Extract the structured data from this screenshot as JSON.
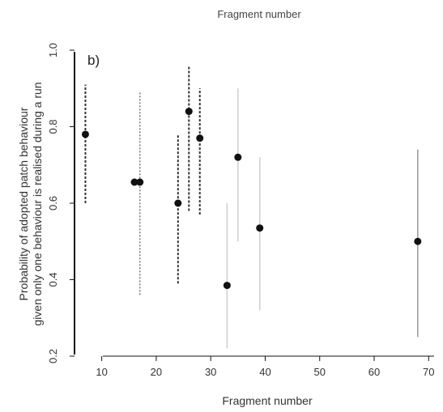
{
  "header_text": "Fragment number",
  "chart_data": {
    "type": "scatter",
    "panel_label": "b)",
    "xlabel": "Fragment number",
    "ylabel_lines": [
      "Probability of adopted patch behaviour",
      "given only one behaviour is realised during a run"
    ],
    "xlim": [
      5,
      71
    ],
    "ylim": [
      0.2,
      1.0
    ],
    "xticks": [
      10,
      20,
      30,
      40,
      50,
      60,
      70
    ],
    "yticks": [
      0.2,
      0.4,
      0.6,
      0.8,
      1.0
    ],
    "ytick_labels": [
      "0.2",
      "0.4",
      "0.6",
      "0.8",
      "1.0"
    ],
    "points": [
      {
        "x": 7,
        "y": 0.78,
        "lo": 0.6,
        "hi": 0.91,
        "ci_style": "dotted-dark"
      },
      {
        "x": 16,
        "y": 0.655,
        "lo": null,
        "hi": null,
        "ci_style": "none"
      },
      {
        "x": 17,
        "y": 0.655,
        "lo": 0.36,
        "hi": 0.89,
        "ci_style": "dotted-light"
      },
      {
        "x": 24,
        "y": 0.6,
        "lo": 0.39,
        "hi": 0.78,
        "ci_style": "dotted-dark"
      },
      {
        "x": 26,
        "y": 0.84,
        "lo": 0.58,
        "hi": 0.96,
        "ci_style": "dotted-dark"
      },
      {
        "x": 28,
        "y": 0.77,
        "lo": 0.57,
        "hi": 0.9,
        "ci_style": "dotted-dark"
      },
      {
        "x": 33,
        "y": 0.385,
        "lo": 0.22,
        "hi": 0.6,
        "ci_style": "solid-faint"
      },
      {
        "x": 35,
        "y": 0.72,
        "lo": 0.5,
        "hi": 0.9,
        "ci_style": "solid-faint"
      },
      {
        "x": 39,
        "y": 0.535,
        "lo": 0.32,
        "hi": 0.72,
        "ci_style": "solid-faint"
      },
      {
        "x": 68,
        "y": 0.5,
        "lo": 0.25,
        "hi": 0.74,
        "ci_style": "solid-light"
      }
    ]
  }
}
